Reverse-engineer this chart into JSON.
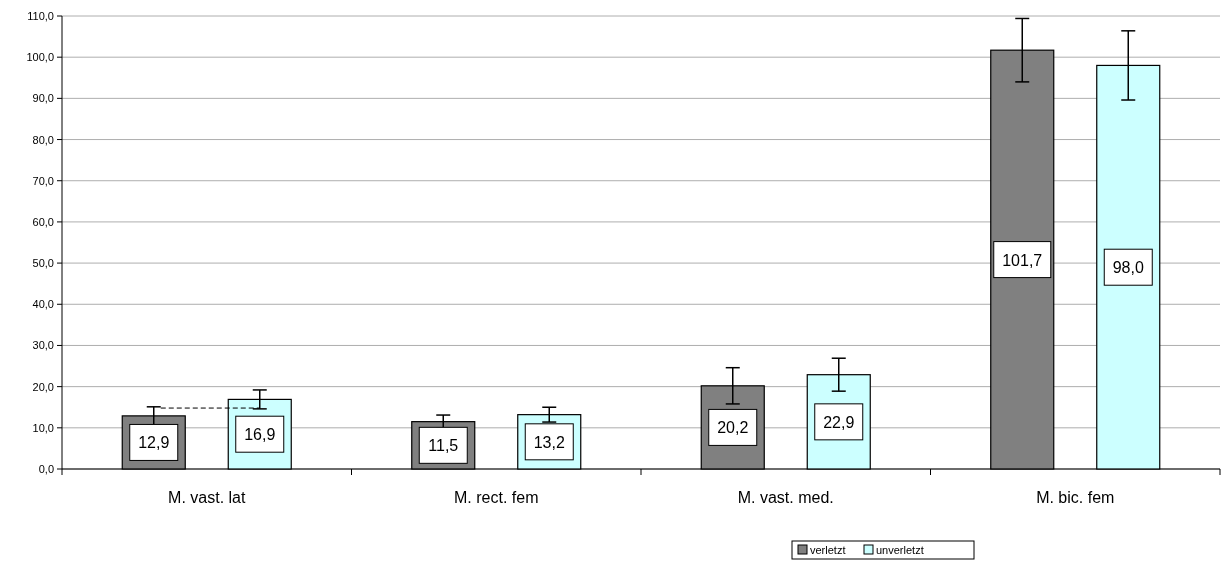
{
  "chart_data": {
    "type": "bar",
    "categories": [
      "M. vast. lat",
      "M. rect. fem",
      "M. vast. med.",
      "M. bic. fem"
    ],
    "series": [
      {
        "name": "verletzt",
        "color": "#808080",
        "values": [
          12.9,
          11.5,
          20.2,
          101.7
        ],
        "errors": [
          2.2,
          1.6,
          4.4,
          7.7
        ],
        "value_labels": [
          "12,9",
          "11,5",
          "20,2",
          "101,7"
        ]
      },
      {
        "name": "unverletzt",
        "color": "#ccffff",
        "values": [
          16.9,
          13.2,
          22.9,
          98.0
        ],
        "errors": [
          2.3,
          1.8,
          4.0,
          8.4
        ],
        "value_labels": [
          "16,9",
          "13,2",
          "22,9",
          "98,0"
        ]
      }
    ],
    "ylim": [
      0,
      110
    ],
    "yticks": [
      {
        "value": 0,
        "label": "0,0"
      },
      {
        "value": 10,
        "label": "10,0"
      },
      {
        "value": 20,
        "label": "20,0"
      },
      {
        "value": 30,
        "label": "30,0"
      },
      {
        "value": 40,
        "label": "40,0"
      },
      {
        "value": 50,
        "label": "50,0"
      },
      {
        "value": 60,
        "label": "60,0"
      },
      {
        "value": 70,
        "label": "70,0"
      },
      {
        "value": 80,
        "label": "80,0"
      },
      {
        "value": 90,
        "label": "90,0"
      },
      {
        "value": 100,
        "label": "100,0"
      },
      {
        "value": 110,
        "label": "110,0"
      }
    ],
    "grid": "y",
    "legend": "bottom"
  }
}
